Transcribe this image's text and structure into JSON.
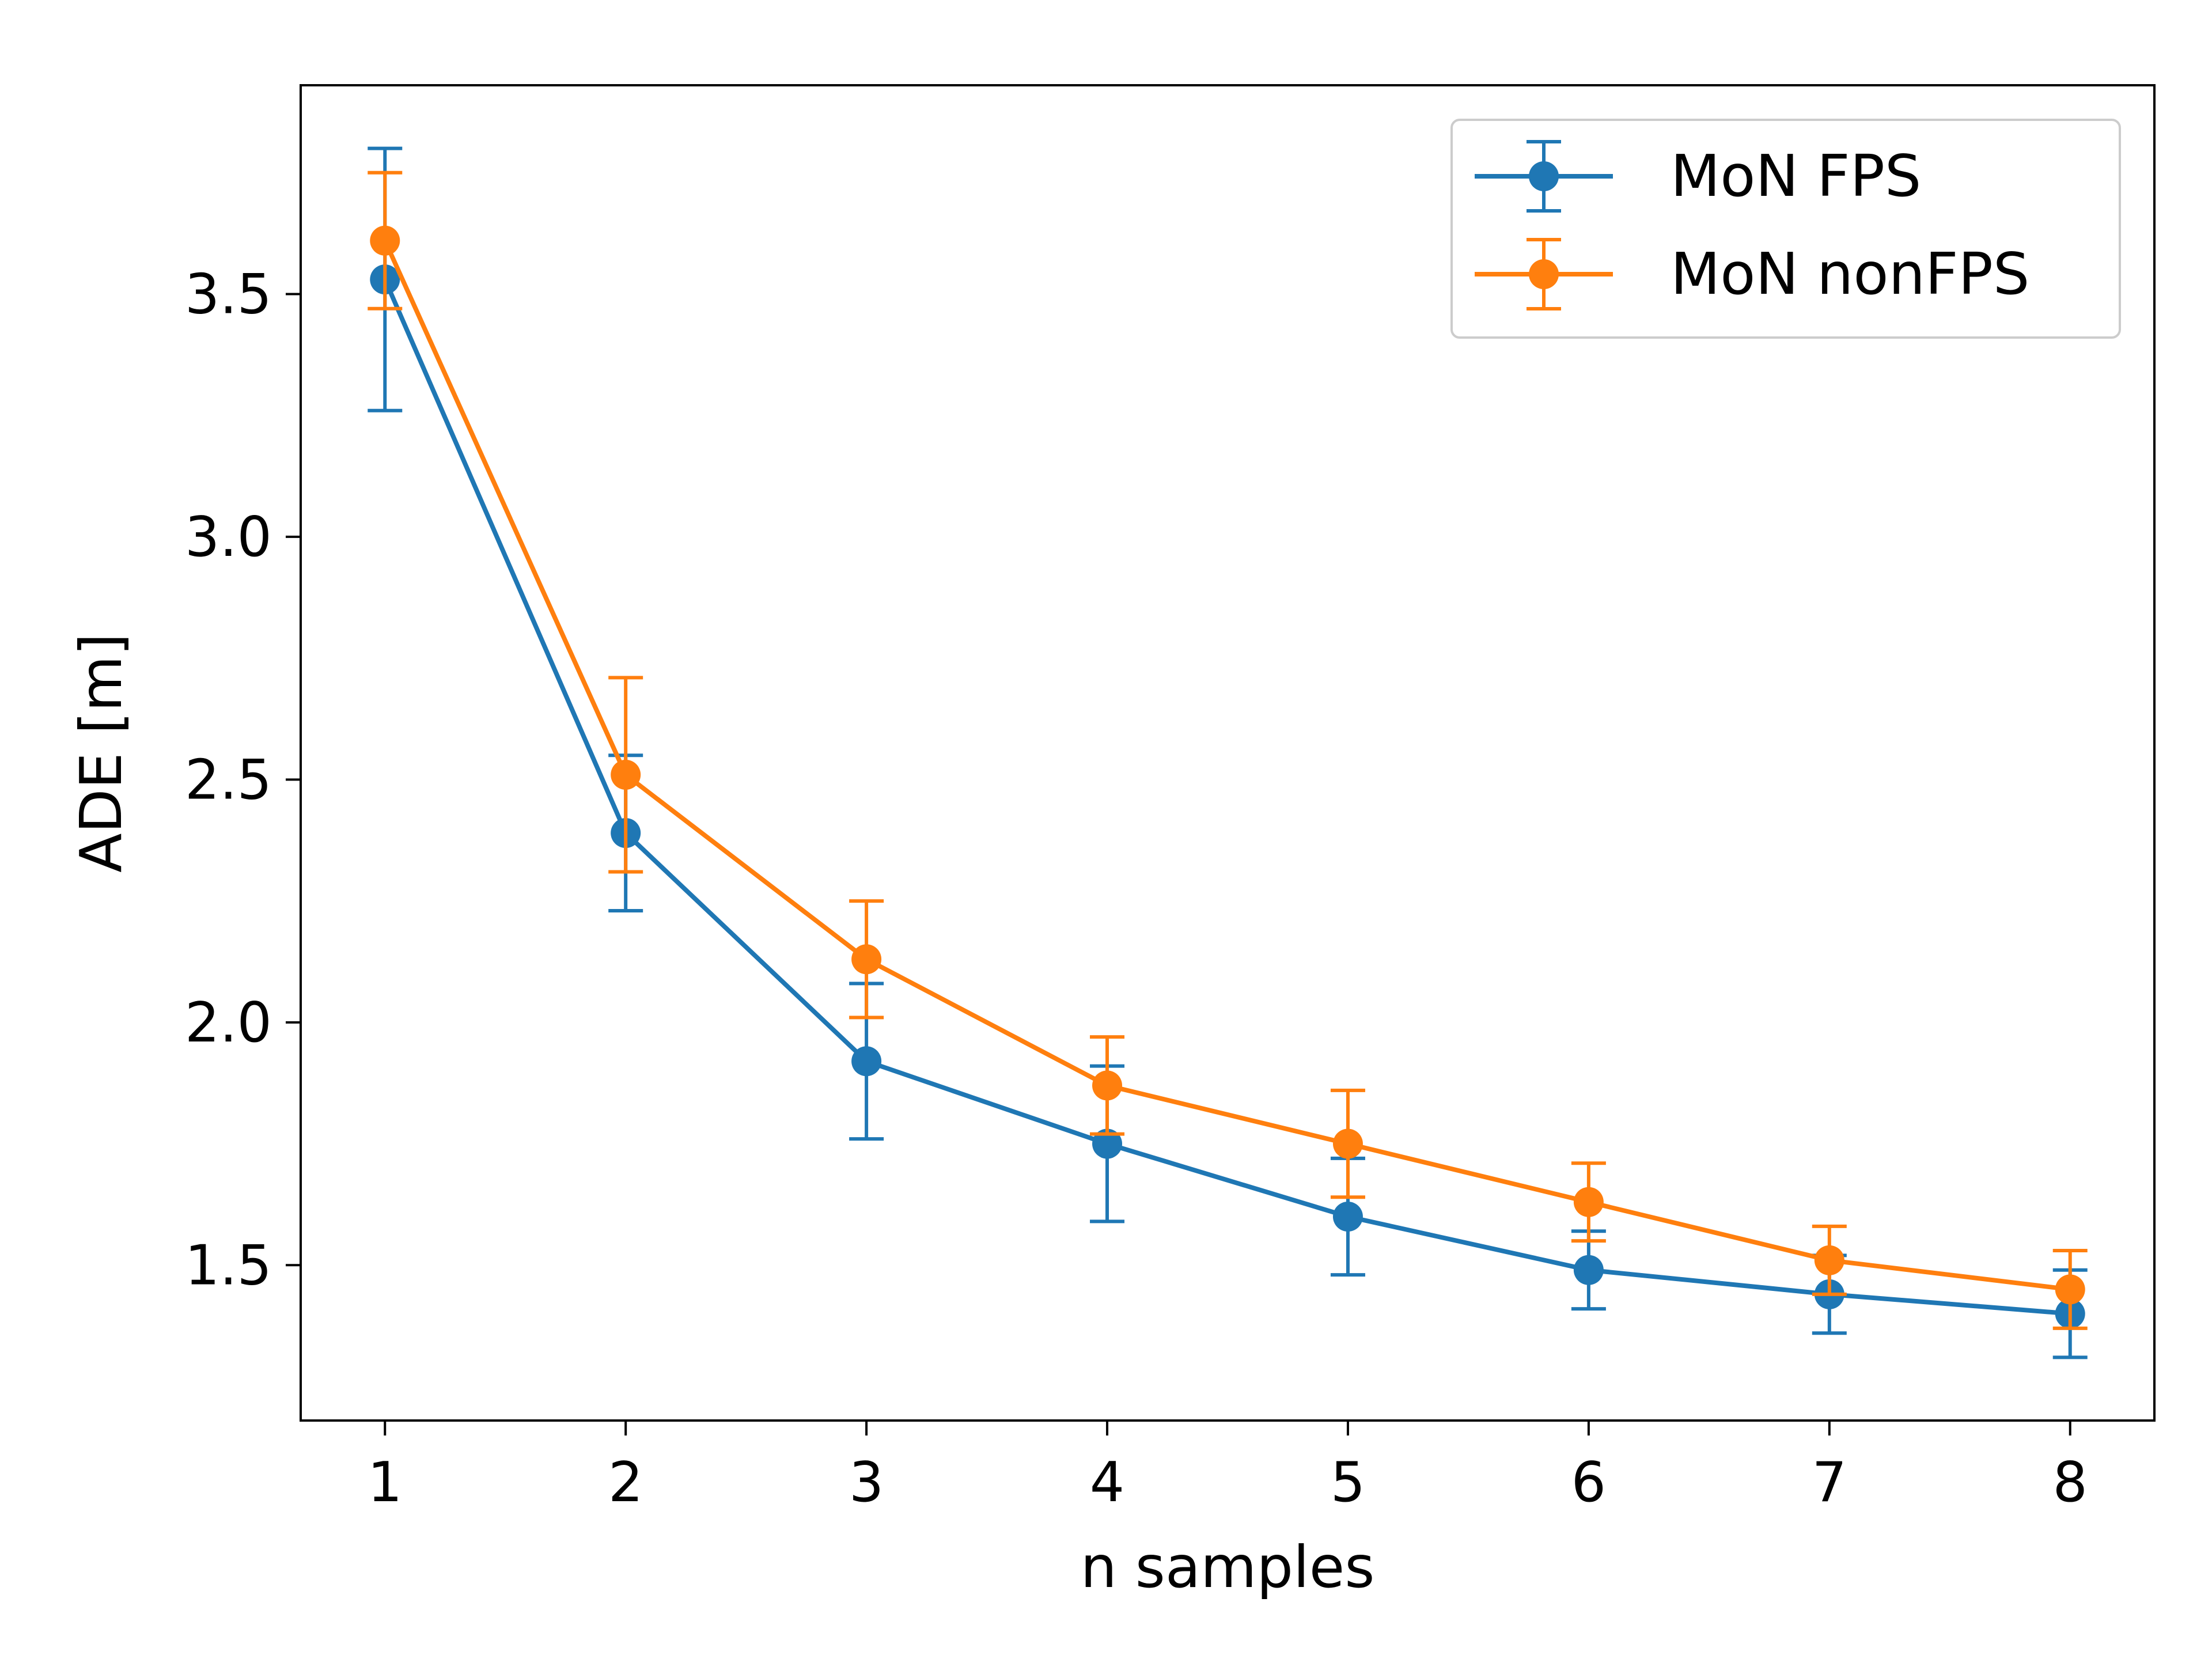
{
  "chart_data": {
    "type": "line",
    "x": [
      1,
      2,
      3,
      4,
      5,
      6,
      7,
      8
    ],
    "series": [
      {
        "name": "MoN FPS",
        "color": "#1f77b4",
        "values": [
          3.53,
          2.39,
          1.92,
          1.75,
          1.6,
          1.49,
          1.44,
          1.4
        ],
        "error": [
          0.27,
          0.16,
          0.16,
          0.16,
          0.12,
          0.08,
          0.08,
          0.09
        ]
      },
      {
        "name": "MoN nonFPS",
        "color": "#ff7f0e",
        "values": [
          3.61,
          2.51,
          2.13,
          1.87,
          1.75,
          1.63,
          1.51,
          1.45
        ],
        "error": [
          0.14,
          0.2,
          0.12,
          0.1,
          0.11,
          0.08,
          0.07,
          0.08
        ]
      }
    ],
    "xlabel": "n samples",
    "ylabel": "ADE [m]",
    "xticks": [
      "1",
      "2",
      "3",
      "4",
      "5",
      "6",
      "7",
      "8"
    ],
    "yticks": [
      "1.5",
      "2.0",
      "2.5",
      "3.0",
      "3.5"
    ],
    "xlim": [
      0.65,
      8.35
    ],
    "ylim": [
      1.18,
      3.93
    ],
    "grid": false,
    "legend": "top-right"
  }
}
